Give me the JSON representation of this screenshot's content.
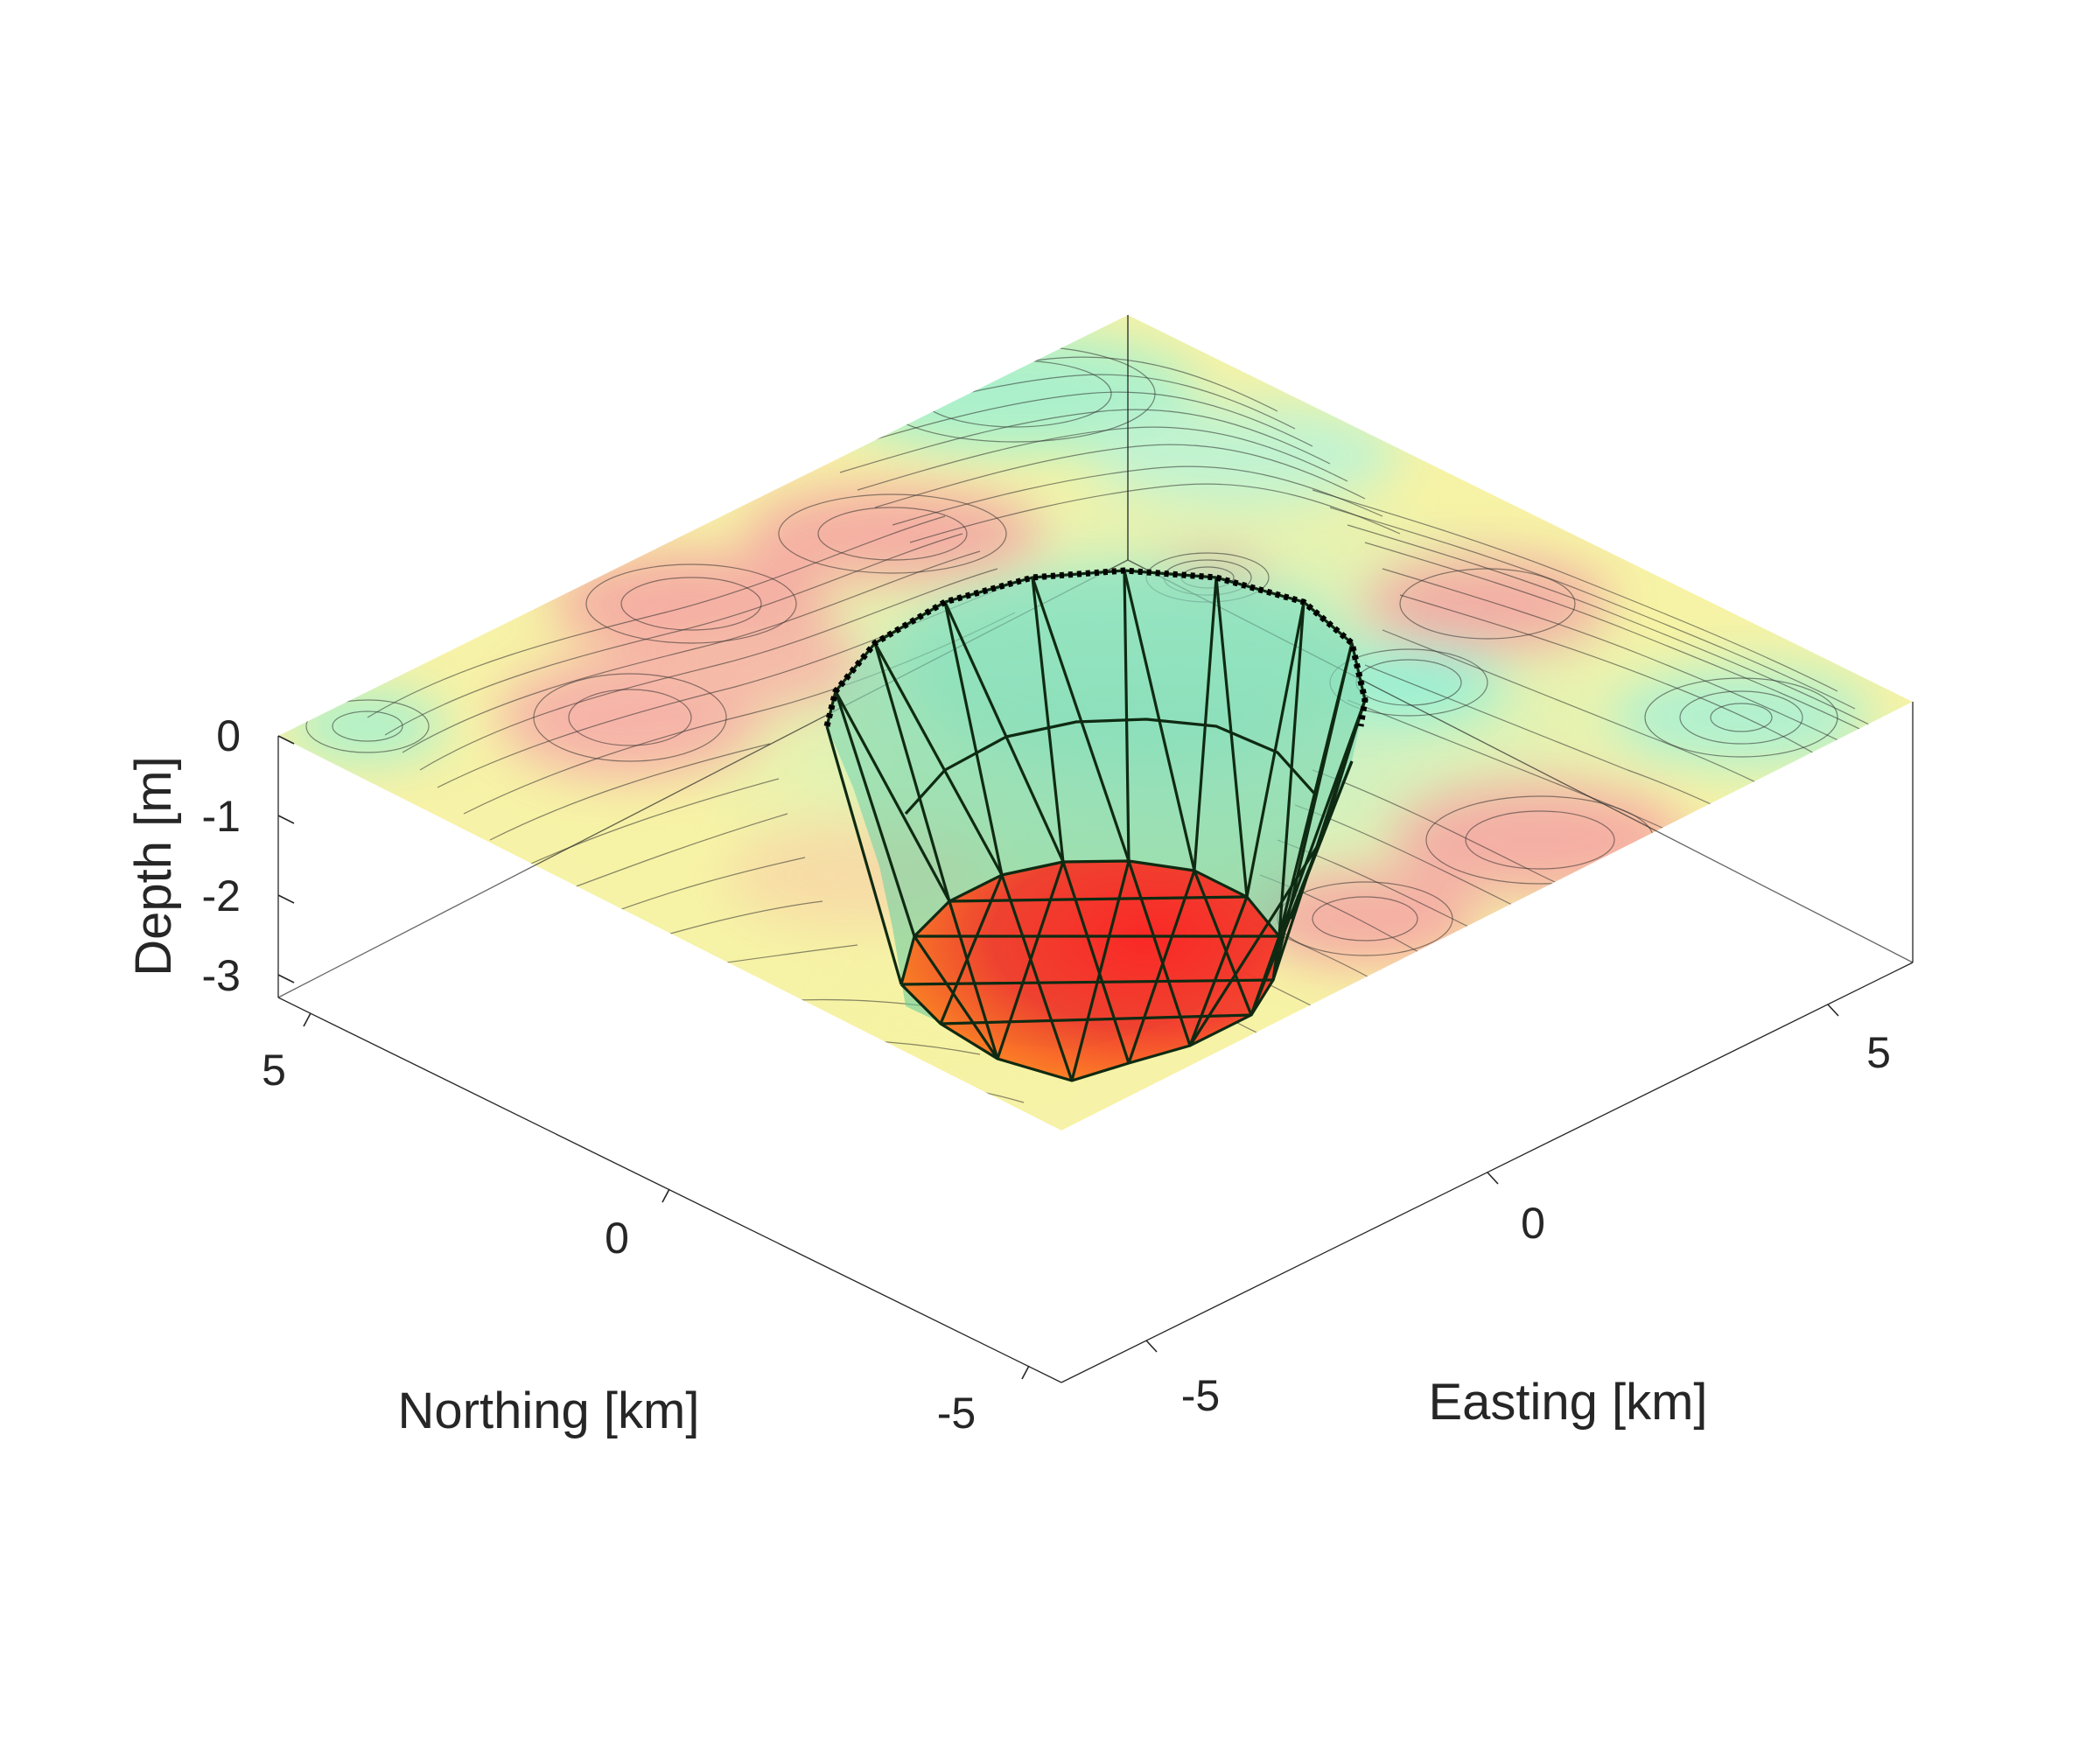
{
  "figure": {
    "axes": {
      "z": {
        "label": "Depth [m]",
        "ticks": [
          "0",
          "-1",
          "-2",
          "-3"
        ],
        "tick_values": [
          0,
          -1,
          -2,
          -3
        ],
        "range": [
          -3.3,
          0
        ]
      },
      "northing": {
        "label": "Northing [km]",
        "ticks": [
          "5",
          "0",
          "-5"
        ],
        "tick_values": [
          5,
          0,
          -5
        ],
        "range": [
          -10,
          10
        ]
      },
      "easting": {
        "label": "Easting [km]",
        "ticks": [
          "-5",
          "0",
          "5"
        ],
        "tick_values": [
          -5,
          0,
          5
        ],
        "range": [
          -10,
          10
        ]
      }
    },
    "colors": {
      "terrain_high": "#f4a3a3",
      "terrain_mid": "#f6f3a6",
      "terrain_low": "#9ef0d2",
      "cavity_wall": "#7fd6b3",
      "cavity_floor_warm": "#ff2020",
      "cavity_floor_orange": "#ff8c1a",
      "mesh": "#0f2a12"
    },
    "view": "3d-isometric",
    "grid": false
  }
}
